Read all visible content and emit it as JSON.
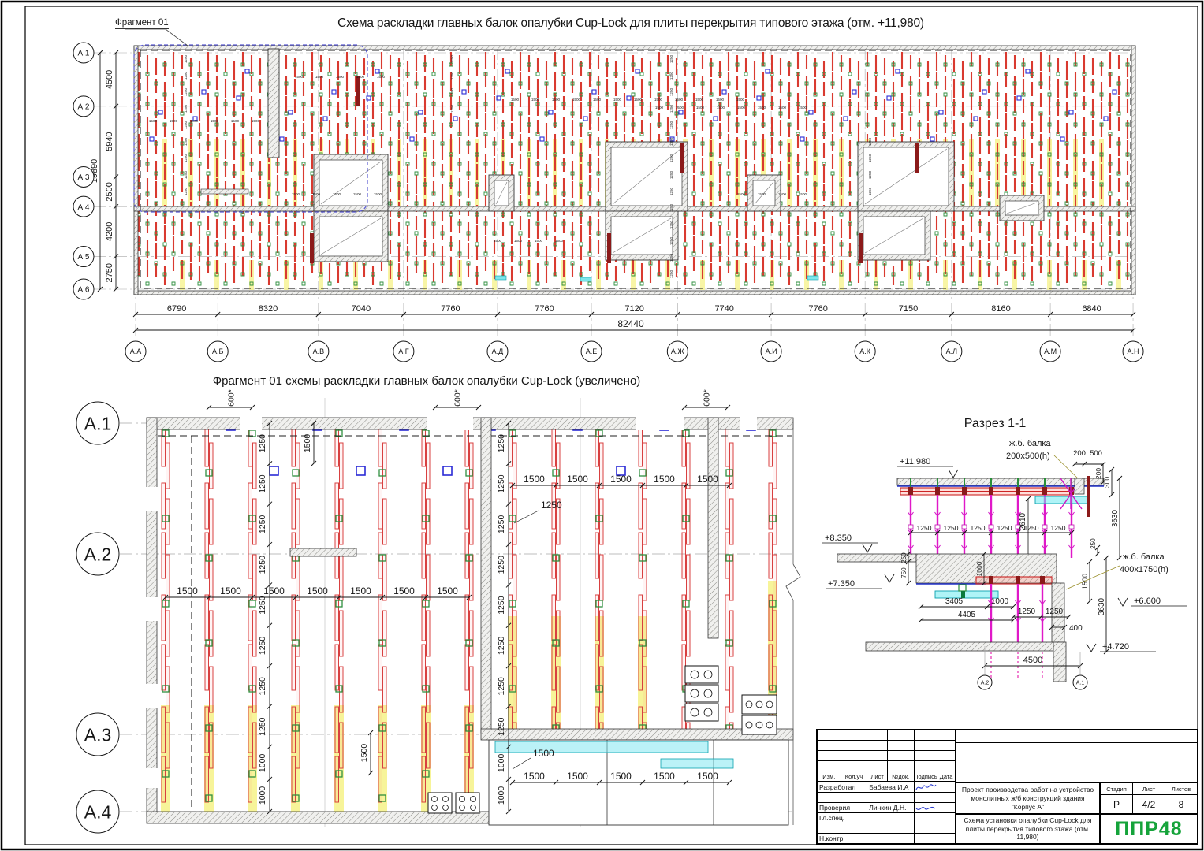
{
  "top_plan": {
    "title": "Схема раскладки главных балок опалубки Cup-Lock для плиты перекрытия типового этажа (отм. +11,980)",
    "fragment_label": "Фрагмент 01",
    "v_axes": [
      "А.1",
      "А.2",
      "А.3",
      "А.4",
      "А.5",
      "А.6"
    ],
    "v_dims": [
      4500,
      5940,
      2500,
      4200,
      2750
    ],
    "v_total": "19890",
    "h_axes": [
      "А.А",
      "А.Б",
      "А.В",
      "А.Г",
      "А.Д",
      "А.Е",
      "А.Ж",
      "А.И",
      "А.К",
      "А.Л",
      "А.М",
      "А.Н"
    ],
    "h_dims": [
      6790,
      8320,
      7040,
      7760,
      7760,
      7120,
      7740,
      7760,
      7150,
      8160,
      6840
    ],
    "h_total": "82440",
    "micro": {
      "h": "1500",
      "v": "1250"
    }
  },
  "fragment": {
    "title": "Фрагмент 01 схемы раскладки главных балок опалубки Cup-Lock (увеличено)",
    "axes": [
      "А.1",
      "А.2",
      "А.3",
      "А.4"
    ],
    "offset_dim": "600*",
    "v_chain": [
      "1250",
      "1250",
      "1250",
      "1250",
      "1250",
      "1250",
      "1250",
      "1250",
      "1000",
      "1000"
    ],
    "row_top": [
      "1500",
      "1500",
      "1500",
      "1500",
      "1500"
    ],
    "row_mid": [
      "1500",
      "1500",
      "1500",
      "1500",
      "1500",
      "1500",
      "1500"
    ],
    "row_bottom": [
      "1500",
      "1500",
      "1500",
      "1500",
      "1500"
    ],
    "callout_1250": "1250",
    "callout_1500": "1500",
    "rot_1500": "1500"
  },
  "section": {
    "title": "Разрез 1-1",
    "level_top": "+11.980",
    "level_835": "+8.350",
    "level_735": "+7.350",
    "level_660": "+6.600",
    "level_472": "+4.720",
    "beam_top": [
      "ж.б. балка",
      "200x500(h)"
    ],
    "beam_low": [
      "ж.б. балка",
      "400x1750(h)"
    ],
    "d200": "200",
    "d500": "500",
    "d200v": "200",
    "d300": "300",
    "d3630": "3630",
    "d2610": "2610",
    "post_chain": [
      "1250",
      "1250",
      "1250",
      "1250",
      "1250",
      "1250"
    ],
    "d250": "250",
    "d750": "750",
    "d1000": "1000",
    "d3405": "3405",
    "d1000b": "1000",
    "d4405": "4405",
    "d1250a": "1250",
    "d1250b": "1250",
    "d400": "400",
    "d1500": "1500",
    "d3630b": "3630",
    "d250b": "250",
    "d4500": "4500",
    "axes": [
      "А.2",
      "А.1"
    ]
  },
  "titleblock": {
    "cols": [
      "Изм.",
      "Кол.уч",
      "Лист",
      "№док.",
      "Подпись",
      "Дата"
    ],
    "rows": [
      {
        "role": "Разработал",
        "name": "Бабаева И.А"
      },
      {
        "role": "Проверил",
        "name": "Линкин Д.Н."
      },
      {
        "role": "Гл.спец.",
        "name": ""
      },
      {
        "role": "Н.контр.",
        "name": ""
      }
    ],
    "project": "Проект производства работ на устройство монолитных ж/б конструкций здания \"Корпус А\"",
    "stage_cols": [
      "Стадия",
      "Лист",
      "Листов"
    ],
    "stage_vals": [
      "Р",
      "4/2",
      "8"
    ],
    "doc_title": "Схема установки опалубки Cup-Lock для плиты перекрытия типового этажа (отм. 11,980)",
    "logo": "ППР48"
  }
}
